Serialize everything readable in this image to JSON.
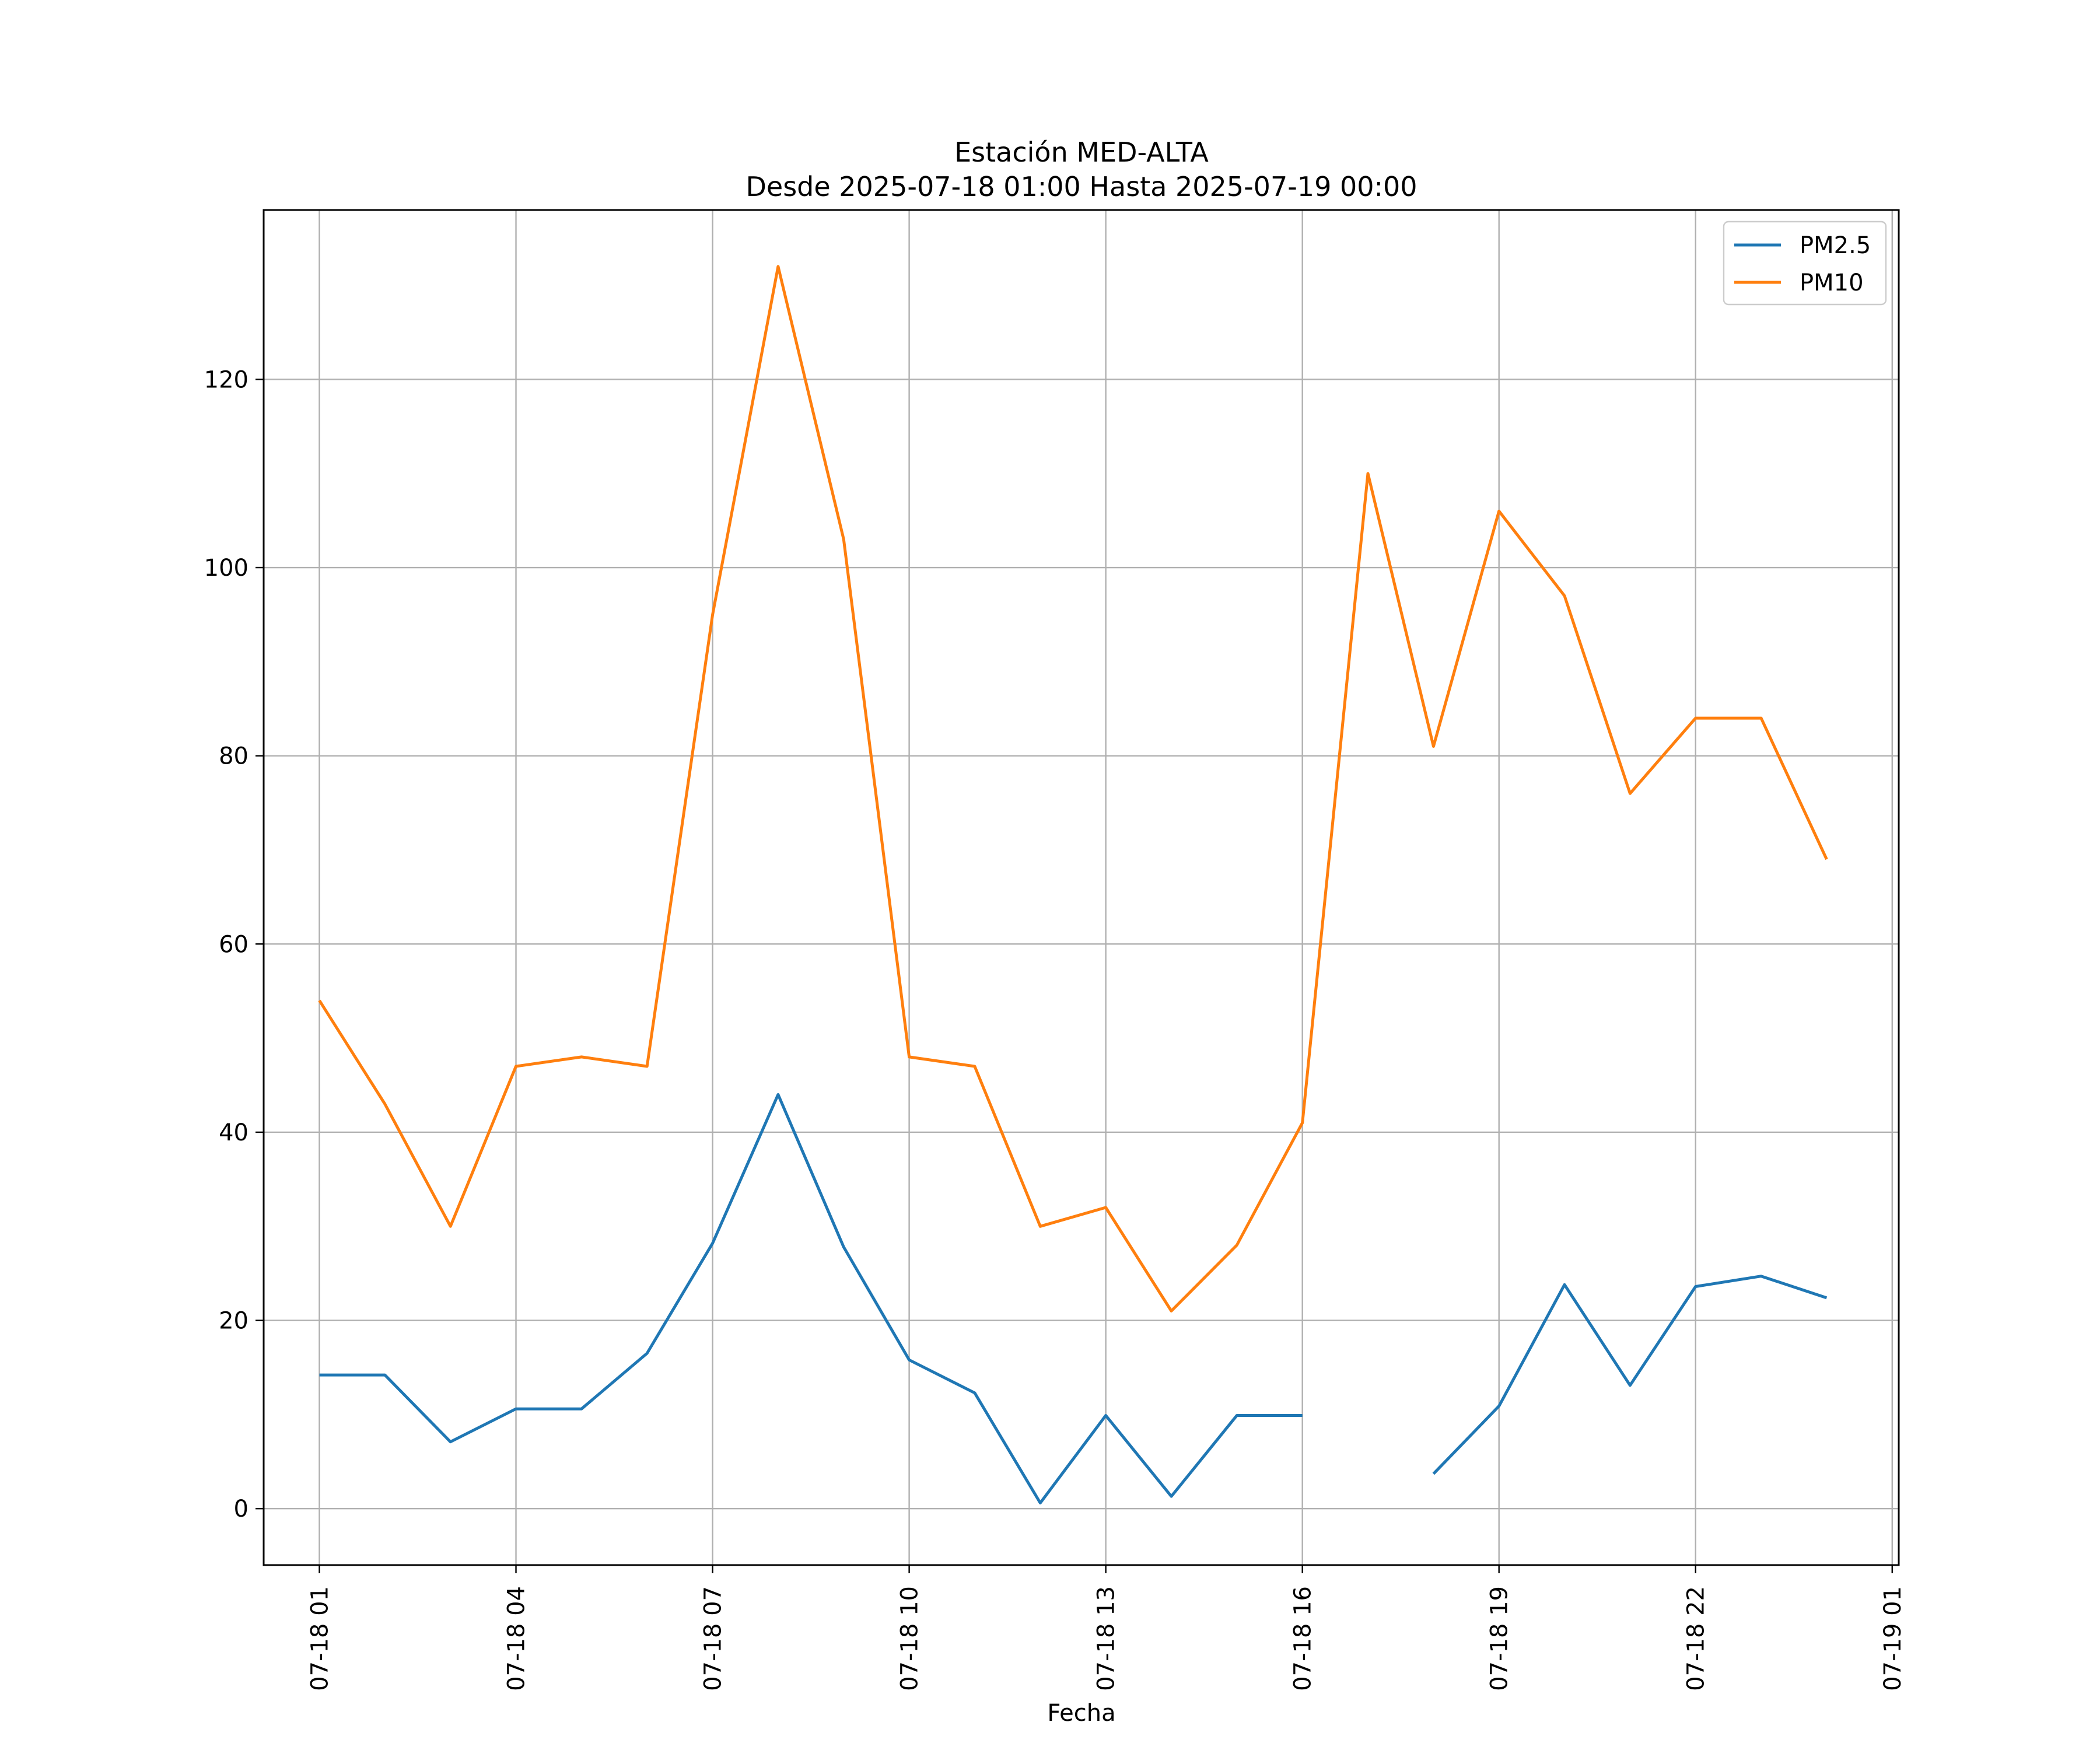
{
  "chart_data": {
    "type": "line",
    "title": "Estación MED-ALTA",
    "subtitle": "Desde 2025-07-18 01:00 Hasta 2025-07-19 00:00",
    "xlabel": "Fecha",
    "ylabel": "",
    "x": [
      "2025-07-18 01:00",
      "2025-07-18 02:00",
      "2025-07-18 03:00",
      "2025-07-18 04:00",
      "2025-07-18 05:00",
      "2025-07-18 06:00",
      "2025-07-18 07:00",
      "2025-07-18 08:00",
      "2025-07-18 09:00",
      "2025-07-18 10:00",
      "2025-07-18 11:00",
      "2025-07-18 12:00",
      "2025-07-18 13:00",
      "2025-07-18 14:00",
      "2025-07-18 15:00",
      "2025-07-18 16:00",
      "2025-07-18 17:00",
      "2025-07-18 18:00",
      "2025-07-18 19:00",
      "2025-07-18 20:00",
      "2025-07-18 21:00",
      "2025-07-18 22:00",
      "2025-07-18 23:00",
      "2025-07-19 00:00"
    ],
    "series": [
      {
        "name": "PM2.5",
        "color": "#1f77b4",
        "values": [
          14.2,
          14.2,
          7.1,
          10.6,
          10.6,
          16.5,
          28.2,
          44,
          27.8,
          15.8,
          12.3,
          0.6,
          9.9,
          1.3,
          9.9,
          9.9,
          null,
          3.7,
          10.9,
          23.8,
          13.1,
          23.6,
          24.7,
          22.4
        ]
      },
      {
        "name": "PM10",
        "color": "#ff7f0e",
        "values": [
          54,
          43,
          30,
          47,
          48,
          47,
          95,
          132,
          103,
          48,
          47,
          30,
          32,
          21,
          28,
          41,
          110,
          81,
          106,
          97,
          76,
          84,
          84,
          69
        ]
      }
    ],
    "xticks": [
      "07-18 01",
      "07-18 04",
      "07-18 07",
      "07-18 10",
      "07-18 13",
      "07-18 16",
      "07-18 19",
      "07-18 22",
      "07-19 01"
    ],
    "xlim": [
      "2025-07-18 00:09",
      "2025-07-19 01:06"
    ],
    "yticks": [
      0,
      20,
      40,
      60,
      80,
      100,
      120
    ],
    "ylim": [
      -6,
      138
    ],
    "grid": true,
    "legend": "top-right"
  }
}
